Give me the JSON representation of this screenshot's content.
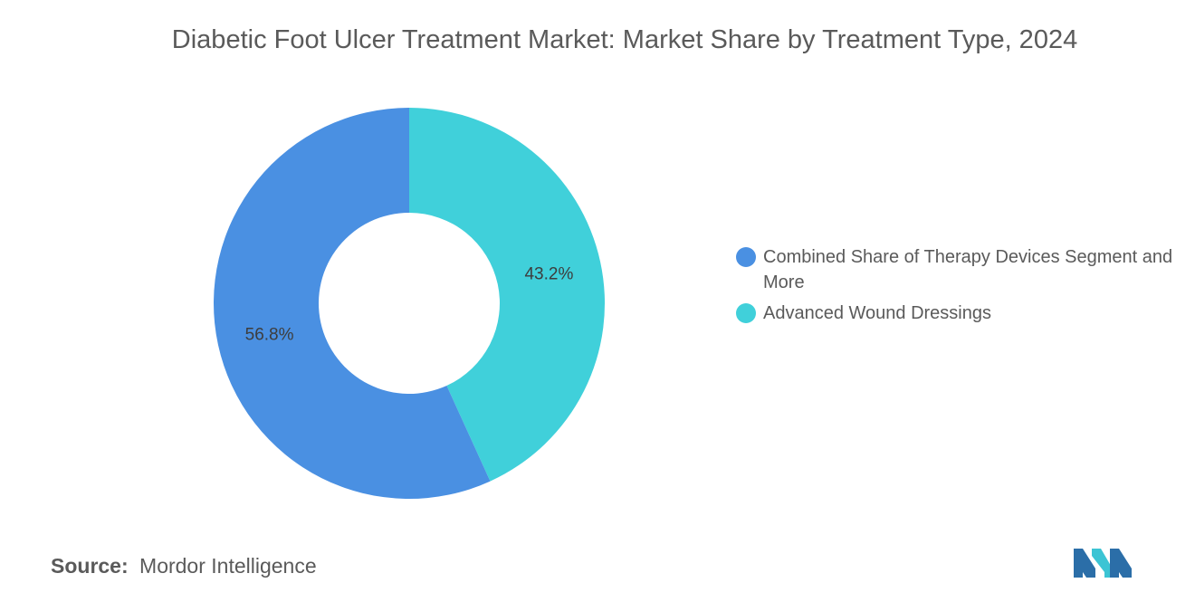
{
  "chart_data": {
    "type": "pie",
    "variant": "donut",
    "title": "Diabetic Foot Ulcer Treatment Market: Market Share by Treatment Type, 2024",
    "categories": [
      "Combined Share of Therapy Devices Segment and More",
      "Advanced Wound Dressings"
    ],
    "values": [
      56.8,
      43.2
    ],
    "value_labels": [
      "56.8%",
      "43.2%"
    ],
    "colors": [
      "#4a90e2",
      "#40d0da"
    ],
    "legend_position": "right"
  },
  "source": {
    "label": "Source:",
    "value": "Mordor Intelligence"
  },
  "logo": {
    "icon": "mordor-intelligence-logo-icon",
    "colors": [
      "#2b6ea8",
      "#3cc4d4"
    ]
  }
}
